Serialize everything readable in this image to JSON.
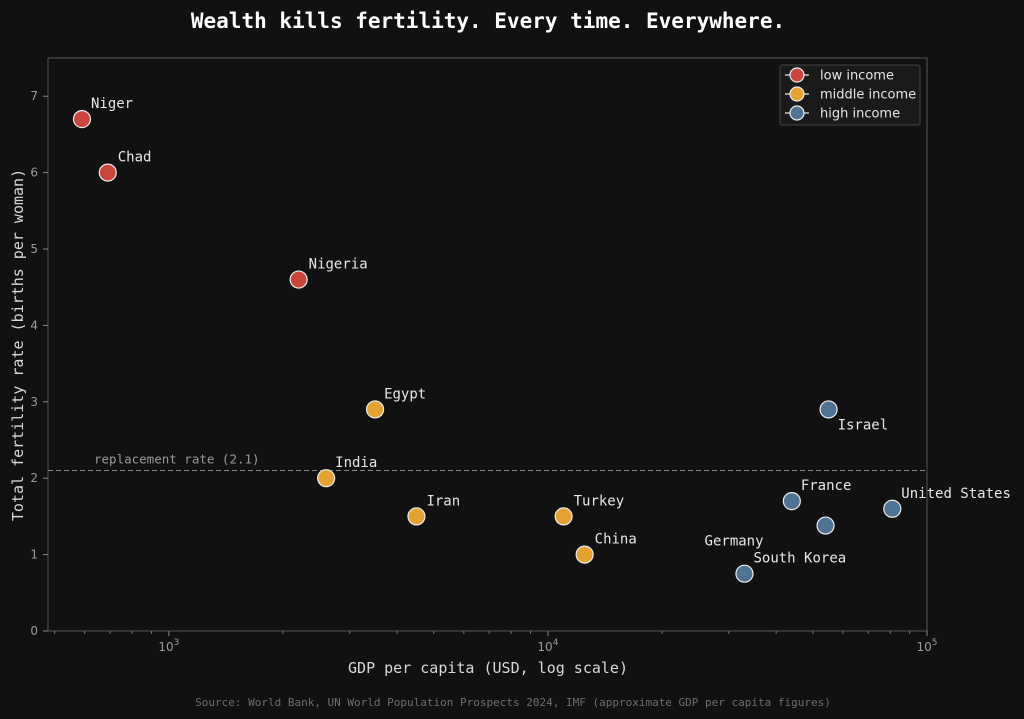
{
  "colors": {
    "background": "#111111",
    "axes_frame": "#555555",
    "low income": "#c8463c",
    "middle income": "#e3a232",
    "high income": "#4f7394",
    "marker_edge": "#ececec",
    "reference_line": "#888888"
  },
  "chart_data": {
    "type": "scatter",
    "title": "Wealth kills fertility. Every time. Everywhere.",
    "xlabel": "GDP per capita (USD, log scale)",
    "ylabel": "Total fertility rate (births per woman)",
    "x_scale": "log",
    "xlim": [
      480,
      100000
    ],
    "ylim": [
      0,
      7.5
    ],
    "x_ticks": [
      1000,
      10000,
      100000
    ],
    "x_tick_labels": [
      {
        "base": "10",
        "exp": "3"
      },
      {
        "base": "10",
        "exp": "4"
      },
      {
        "base": "10",
        "exp": "5"
      }
    ],
    "y_ticks": [
      0,
      1,
      2,
      3,
      4,
      5,
      6,
      7
    ],
    "y_tick_labels": [
      "0",
      "1",
      "2",
      "3",
      "4",
      "5",
      "6",
      "7"
    ],
    "grid": false,
    "legend_position": "top-right",
    "legend": [
      "low income",
      "middle income",
      "high income"
    ],
    "reference_line": {
      "y": 2.1,
      "label": "replacement rate (2.1)"
    },
    "points": [
      {
        "label": "Niger",
        "x": 590,
        "y": 6.7,
        "group": "low income"
      },
      {
        "label": "Chad",
        "x": 690,
        "y": 6.0,
        "group": "low income"
      },
      {
        "label": "Nigeria",
        "x": 2200,
        "y": 4.6,
        "group": "low income"
      },
      {
        "label": "Egypt",
        "x": 3500,
        "y": 2.9,
        "group": "middle income"
      },
      {
        "label": "India",
        "x": 2600,
        "y": 2.0,
        "group": "middle income"
      },
      {
        "label": "Iran",
        "x": 4500,
        "y": 1.5,
        "group": "middle income"
      },
      {
        "label": "Turkey",
        "x": 11000,
        "y": 1.5,
        "group": "middle income"
      },
      {
        "label": "China",
        "x": 12500,
        "y": 1.0,
        "group": "middle income"
      },
      {
        "label": "Israel",
        "x": 55000,
        "y": 2.9,
        "group": "high income"
      },
      {
        "label": "France",
        "x": 44000,
        "y": 1.7,
        "group": "high income"
      },
      {
        "label": "United States",
        "x": 81000,
        "y": 1.6,
        "group": "high income"
      },
      {
        "label": "Germany",
        "x": 54000,
        "y": 1.38,
        "group": "high income"
      },
      {
        "label": "South Korea",
        "x": 33000,
        "y": 0.75,
        "group": "high income"
      }
    ],
    "source": "Source: World Bank, UN World Population Prospects 2024, IMF (approximate GDP per capita figures)"
  }
}
